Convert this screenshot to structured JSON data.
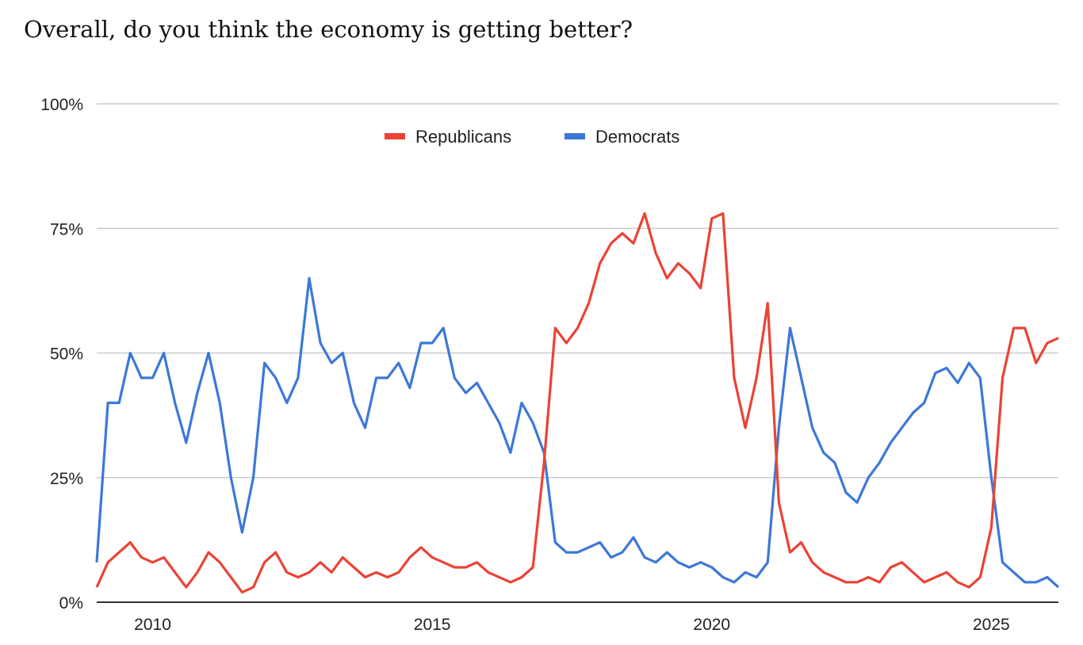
{
  "chart_data": {
    "type": "line",
    "title": "Overall, do you think the economy is getting better?",
    "xlabel": "",
    "ylabel": "",
    "xlim": [
      2009.0,
      2026.2
    ],
    "ylim": [
      0,
      100
    ],
    "x_start": 2009.0,
    "x_step": 0.2,
    "x_ticks": [
      2010,
      2015,
      2020,
      2025
    ],
    "x_tick_labels": [
      "2010",
      "2015",
      "2020",
      "2025"
    ],
    "y_ticks": [
      0,
      25,
      50,
      75,
      100
    ],
    "y_tick_labels": [
      "0%",
      "25%",
      "50%",
      "75%",
      "100%"
    ],
    "grid": true,
    "legend_position": "top-center",
    "series": [
      {
        "name": "Republicans",
        "color": "#ea4335",
        "values": [
          3,
          8,
          10,
          12,
          9,
          8,
          9,
          6,
          3,
          6,
          10,
          8,
          5,
          2,
          3,
          8,
          10,
          6,
          5,
          6,
          8,
          6,
          9,
          7,
          5,
          6,
          5,
          6,
          9,
          11,
          9,
          8,
          7,
          7,
          8,
          6,
          5,
          4,
          5,
          7,
          28,
          55,
          52,
          55,
          60,
          68,
          72,
          74,
          72,
          78,
          70,
          65,
          68,
          66,
          63,
          77,
          78,
          45,
          35,
          45,
          60,
          20,
          10,
          12,
          8,
          6,
          5,
          4,
          4,
          5,
          4,
          7,
          8,
          6,
          4,
          5,
          6,
          4,
          3,
          5,
          15,
          45,
          55,
          55,
          48,
          52,
          53
        ]
      },
      {
        "name": "Democrats",
        "color": "#3c78d8",
        "values": [
          8,
          40,
          40,
          50,
          45,
          45,
          50,
          40,
          32,
          42,
          50,
          40,
          25,
          14,
          25,
          48,
          45,
          40,
          45,
          65,
          52,
          48,
          50,
          40,
          35,
          45,
          45,
          48,
          43,
          52,
          52,
          55,
          45,
          42,
          44,
          40,
          36,
          30,
          40,
          36,
          30,
          12,
          10,
          10,
          11,
          12,
          9,
          10,
          13,
          9,
          8,
          10,
          8,
          7,
          8,
          7,
          5,
          4,
          6,
          5,
          8,
          35,
          55,
          45,
          35,
          30,
          28,
          22,
          20,
          25,
          28,
          32,
          35,
          38,
          40,
          46,
          47,
          44,
          48,
          45,
          25,
          8,
          6,
          4,
          4,
          5,
          3
        ]
      }
    ]
  }
}
